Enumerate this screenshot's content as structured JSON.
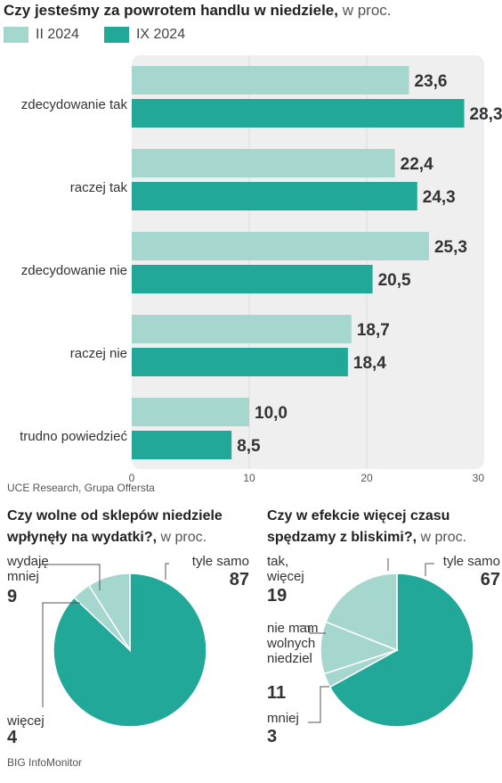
{
  "colors": {
    "light": "#a6d7ce",
    "dark": "#22a898",
    "panel": "#efefef",
    "leader": "#555555"
  },
  "chart_data": [
    {
      "type": "bar",
      "title": "Czy jesteśmy za powrotem handlu w niedziele,",
      "unit": "w proc.",
      "categories": [
        "zdecydowanie tak",
        "raczej tak",
        "zdecydowanie nie",
        "raczej nie",
        "trudno powiedzieć"
      ],
      "series": [
        {
          "name": "II 2024",
          "values": [
            23.6,
            22.4,
            25.3,
            18.7,
            10.0
          ],
          "labels": [
            "23,6",
            "22,4",
            "25,3",
            "18,7",
            "10,0"
          ]
        },
        {
          "name": "IX 2024",
          "values": [
            28.3,
            24.3,
            20.5,
            18.4,
            8.5
          ],
          "labels": [
            "28,3",
            "24,3",
            "20,5",
            "18,4",
            "8,5"
          ]
        }
      ],
      "xlim": [
        0,
        30
      ],
      "ticks": [
        0,
        10,
        20,
        30
      ],
      "grid": true,
      "legend": "top-left",
      "source": "UCE Research, Grupa Offersta"
    },
    {
      "type": "pie",
      "title": "Czy wolne od sklepów niedziele wpłynęły na wydatki?,",
      "unit": "w proc.",
      "slices": [
        {
          "label": "tyle samo",
          "value": 87,
          "value_label": "87",
          "color": "dark"
        },
        {
          "label": "więcej",
          "value": 4,
          "value_label": "4",
          "color": "light"
        },
        {
          "label": "wydaję mniej",
          "value": 9,
          "value_label": "9",
          "color": "light"
        }
      ]
    },
    {
      "type": "pie",
      "title": "Czy w efekcie więcej czasu spędzamy z bliskimi?,",
      "unit": "w proc.",
      "slices": [
        {
          "label": "tyle samo",
          "value": 67,
          "value_label": "67",
          "color": "dark"
        },
        {
          "label": "mniej",
          "value": 3,
          "value_label": "3",
          "color": "light"
        },
        {
          "label": "nie mam wolnych niedziel",
          "value": 11,
          "value_label": "11",
          "color": "light"
        },
        {
          "label": "tak, więcej",
          "value": 19,
          "value_label": "19",
          "color": "light"
        }
      ],
      "source": "BIG InfoMonitor"
    }
  ]
}
